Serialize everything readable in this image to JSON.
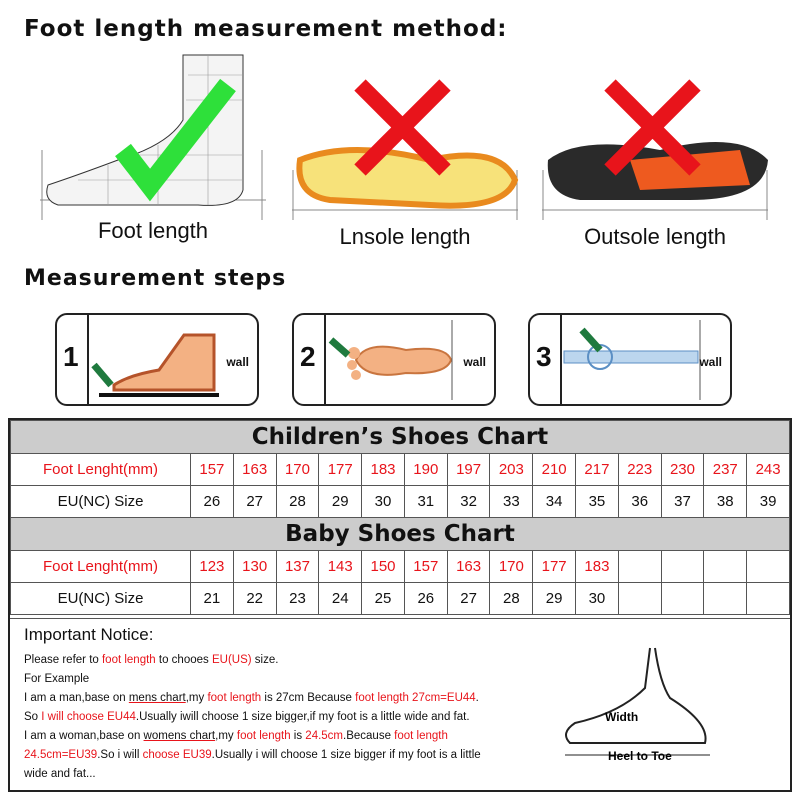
{
  "title": "Foot length measurement method:",
  "methods": [
    {
      "caption": "Foot length",
      "mark": "check"
    },
    {
      "caption": "Lnsole length",
      "mark": "cross"
    },
    {
      "caption": "Outsole length",
      "mark": "cross"
    }
  ],
  "steps_title": "Measurement steps",
  "steps": [
    {
      "num": "1",
      "wall": "wall"
    },
    {
      "num": "2",
      "wall": "wall"
    },
    {
      "num": "3",
      "wall": "wall"
    }
  ],
  "children": {
    "title": "Children’s Shoes Chart",
    "length_label": "Foot Lenght(mm)",
    "size_label": "EU(NC) Size",
    "lengths": [
      "157",
      "163",
      "170",
      "177",
      "183",
      "190",
      "197",
      "203",
      "210",
      "217",
      "223",
      "230",
      "237",
      "243"
    ],
    "sizes": [
      "26",
      "27",
      "28",
      "29",
      "30",
      "31",
      "32",
      "33",
      "34",
      "35",
      "36",
      "37",
      "38",
      "39"
    ]
  },
  "baby": {
    "title": "Baby Shoes Chart",
    "length_label": "Foot Lenght(mm)",
    "size_label": "EU(NC) Size",
    "lengths": [
      "123",
      "130",
      "137",
      "143",
      "150",
      "157",
      "163",
      "170",
      "177",
      "183",
      "",
      "",
      "",
      ""
    ],
    "sizes": [
      "21",
      "22",
      "23",
      "24",
      "25",
      "26",
      "27",
      "28",
      "29",
      "30",
      "",
      "",
      "",
      ""
    ]
  },
  "notice": {
    "title": "Important Notice:",
    "l1": [
      "Please refer to ",
      "foot length",
      " to chooes ",
      "EU(US)",
      " size."
    ],
    "l2": "For Example",
    "l3": [
      "I am a man,base on ",
      "mens chart",
      ",my ",
      "foot length",
      " is 27cm Because ",
      "foot length 27cm=EU44",
      "."
    ],
    "l4": [
      "So ",
      "I will choose EU44",
      ".Usually iwill choose 1 size bigger,if my foot is a little wide and fat."
    ],
    "l5": [
      "I am a woman,base on ",
      "womens chart",
      ",my ",
      "foot length",
      " is ",
      "24.5cm",
      ".Because ",
      "foot length"
    ],
    "l6": [
      "24.5cm=EU39",
      ".So i will ",
      "choose EU39",
      ".Usually i will choose 1 size bigger if my foot is a little"
    ],
    "l7": "wide and fat...",
    "diagram_width": "Width",
    "diagram_heel": "Heel to Toe"
  },
  "colors": {
    "red": "#e8141b",
    "header_gray": "#cccccc",
    "check": "#2ee03a"
  }
}
